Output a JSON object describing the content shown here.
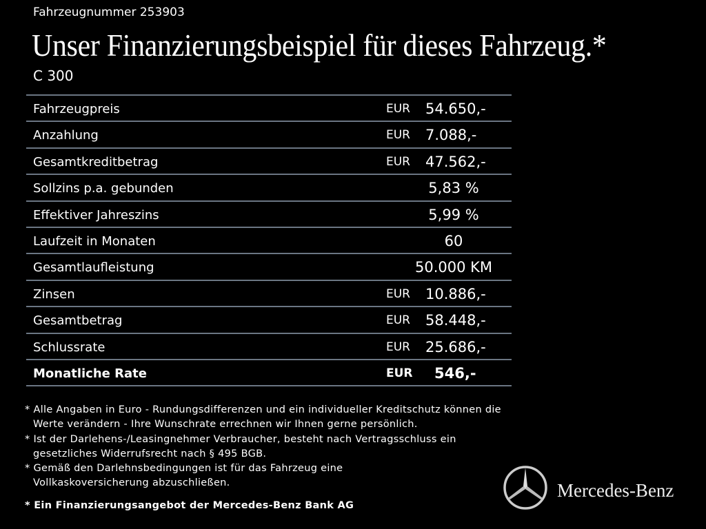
{
  "vehicle_number": "Fahrzeugnummer 253903",
  "title": "Unser Finanzierungsbeispiel für dieses Fahrzeug.*",
  "model": "C 300",
  "rows": [
    {
      "label": "Fahrzeugpreis",
      "currency": "EUR",
      "value": "54.650,-"
    },
    {
      "label": "Anzahlung",
      "currency": "EUR",
      "value": "7.088,-"
    },
    {
      "label": "Gesamtkreditbetrag",
      "currency": "EUR",
      "value": "47.562,-"
    },
    {
      "label": "Sollzins p.a. gebunden",
      "currency": "",
      "value": "5,83 %"
    },
    {
      "label": "Effektiver Jahreszins",
      "currency": "",
      "value": "5,99 %"
    },
    {
      "label": "Laufzeit in Monaten",
      "currency": "",
      "value": "60"
    },
    {
      "label": "Gesamtlaufleistung",
      "currency": "",
      "value": "50.000 KM"
    },
    {
      "label": "Zinsen",
      "currency": "EUR",
      "value": "10.886,-"
    },
    {
      "label": "Gesamtbetrag",
      "currency": "EUR",
      "value": "58.448,-"
    },
    {
      "label": "Schlussrate",
      "currency": "EUR",
      "value": "25.686,-"
    },
    {
      "label": "Monatliche Rate",
      "currency": "EUR",
      "value": "546,-"
    }
  ],
  "notes": [
    "* Alle Angaben in Euro - Rundungsdifferenzen und ein individueller Kreditschutz können die Werte verändern - Ihre Wunschrate errechnen wir Ihnen gerne persönlich.",
    "* Ist der Darlehens-/Leasingnehmer Verbraucher, besteht nach Vertragsschluss ein gesetzliches Widerrufsrecht nach § 495 BGB.",
    "* Gemäß den Darlehnsbedingungen ist für das Fahrzeug eine Vollkaskoversicherung abzuschließen."
  ],
  "bank_note": "* Ein Finanzierungsangebot der Mercedes-Benz Bank AG",
  "brand": "Mercedes-Benz",
  "colors": {
    "background": "#000000",
    "text": "#ffffff",
    "divider": "#6b7683"
  }
}
